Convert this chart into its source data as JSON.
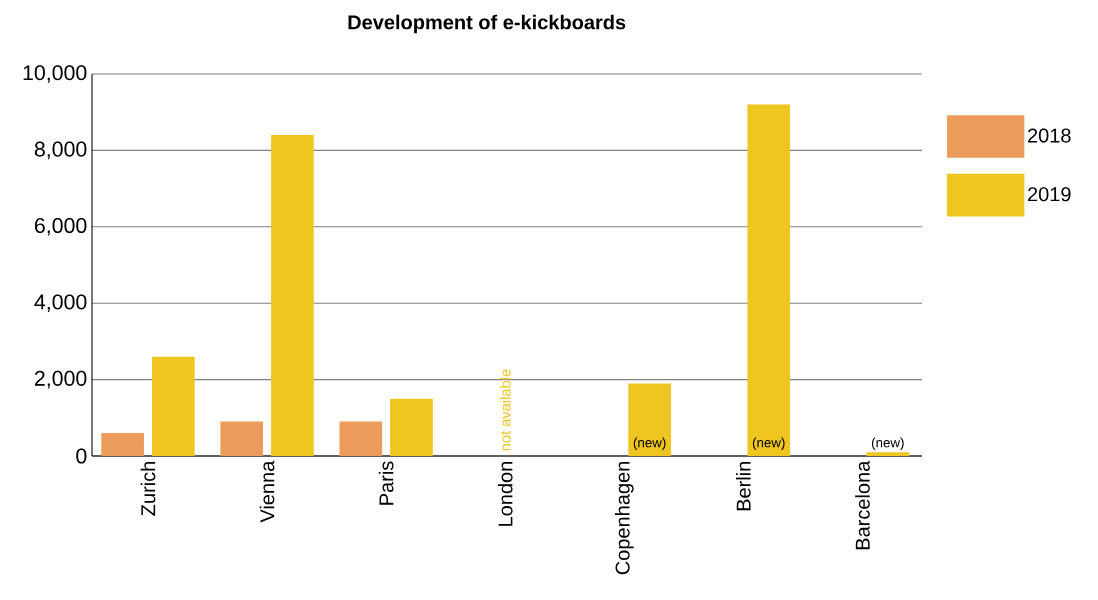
{
  "chart_data": {
    "type": "bar",
    "title": "Development of e-kickboards",
    "categories": [
      "Zurich",
      "Vienna",
      "Paris",
      "London",
      "Copenhagen",
      "Berlin",
      "Barcelona"
    ],
    "series": [
      {
        "name": "2018",
        "color": "#eb9c5b",
        "values": [
          600,
          900,
          900,
          null,
          null,
          null,
          null
        ]
      },
      {
        "name": "2019",
        "color": "#efc520",
        "values": [
          2600,
          8400,
          1500,
          null,
          1900,
          9200,
          100
        ]
      }
    ],
    "ylim": [
      0,
      10000
    ],
    "yticks": [
      0,
      {
        "value": 2000,
        "label": "2,000"
      },
      {
        "value": 4000,
        "label": "4,000"
      },
      {
        "value": 6000,
        "label": "6,000"
      },
      {
        "value": 8000,
        "label": "8,000"
      },
      {
        "value": 10000,
        "label": "10,000"
      }
    ],
    "grid": "y",
    "legend": "top right",
    "annotations": [
      "not available",
      {
        "text": "(new)",
        "x": "Copenhagen",
        "y": 0
      },
      {
        "text": "(new)",
        "x": "Berlin",
        "y": 0
      },
      {
        "text": "(new)",
        "x": "Barcelona",
        "y": 0
      }
    ]
  }
}
